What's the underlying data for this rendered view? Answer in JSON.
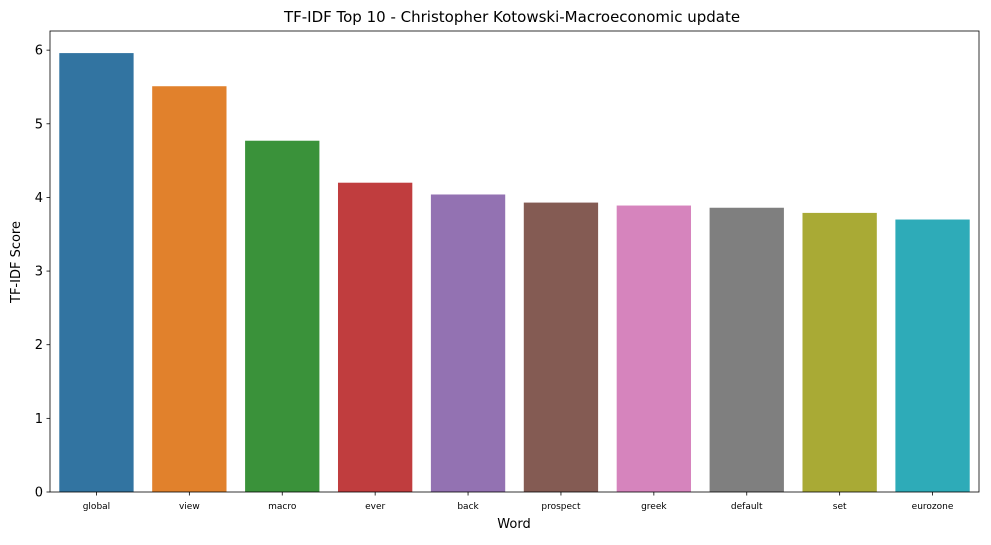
{
  "chart_data": {
    "type": "bar",
    "title": "TF-IDF Top 10 - Christopher Kotowski-Macroeconomic update",
    "xlabel": "Word",
    "ylabel": "TF-IDF Score",
    "categories": [
      "global",
      "view",
      "macro",
      "ever",
      "back",
      "prospect",
      "greek",
      "default",
      "set",
      "eurozone"
    ],
    "values": [
      5.96,
      5.51,
      4.77,
      4.2,
      4.04,
      3.93,
      3.89,
      3.86,
      3.79,
      3.7
    ],
    "colors": [
      "#3274a1",
      "#e1812c",
      "#3a923a",
      "#c03d3e",
      "#9372b2",
      "#845b53",
      "#d684bd",
      "#7f7f7f",
      "#a9aa35",
      "#2eabb8"
    ],
    "ylim": [
      0,
      6.26
    ],
    "yticks": [
      0,
      1,
      2,
      3,
      4,
      5,
      6
    ],
    "grid": false,
    "legend": "none"
  }
}
